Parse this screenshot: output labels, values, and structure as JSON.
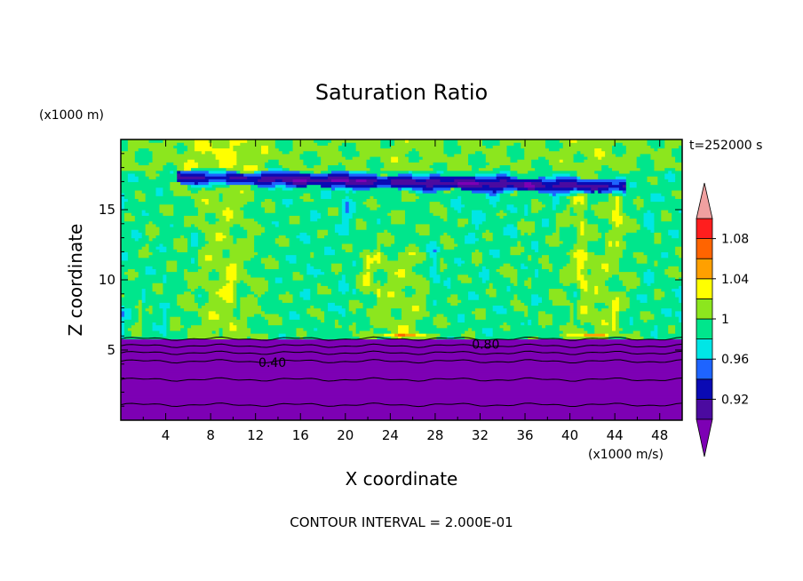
{
  "chart_data": {
    "type": "heatmap",
    "title": "Saturation Ratio",
    "xlabel": "X coordinate",
    "ylabel": "Z coordinate",
    "x_unit": "(x1000 m/s)",
    "y_unit": "(x1000 m)",
    "time_label": "t=252000 s",
    "footer": "CONTOUR INTERVAL = 2.000E-01",
    "xlim": [
      0,
      50
    ],
    "ylim": [
      0,
      20
    ],
    "x_ticks": [
      4,
      8,
      12,
      16,
      20,
      24,
      28,
      32,
      36,
      40,
      44,
      48
    ],
    "y_ticks": [
      5,
      10,
      15
    ],
    "colorbar": {
      "levels": [
        0.9,
        0.92,
        0.94,
        0.96,
        0.98,
        1.0,
        1.02,
        1.04,
        1.06,
        1.08,
        1.1
      ],
      "labels": [
        {
          "value": 0.92,
          "text": "0.92"
        },
        {
          "value": 0.96,
          "text": "0.96"
        },
        {
          "value": 1.0,
          "text": "1"
        },
        {
          "value": 1.04,
          "text": "1.04"
        },
        {
          "value": 1.08,
          "text": "1.08"
        }
      ],
      "colors": [
        "#4b0aa0",
        "#0a0ab4",
        "#1e64ff",
        "#00e6e6",
        "#00e68c",
        "#8ce61e",
        "#ffff00",
        "#ffa000",
        "#ff6400",
        "#ff1e1e"
      ],
      "under_color": "#7d00b4",
      "over_color": "#f0a0a0"
    },
    "contour_labels": [
      {
        "x": 13.5,
        "y": 4.1,
        "text": "0.40"
      },
      {
        "x": 32.5,
        "y": 5.4,
        "text": "0.80"
      }
    ],
    "regions": {
      "dry_layer_top_z": 5.9,
      "band_z_range": [
        16.4,
        17.6
      ],
      "band_x_range": [
        5,
        45
      ]
    }
  }
}
